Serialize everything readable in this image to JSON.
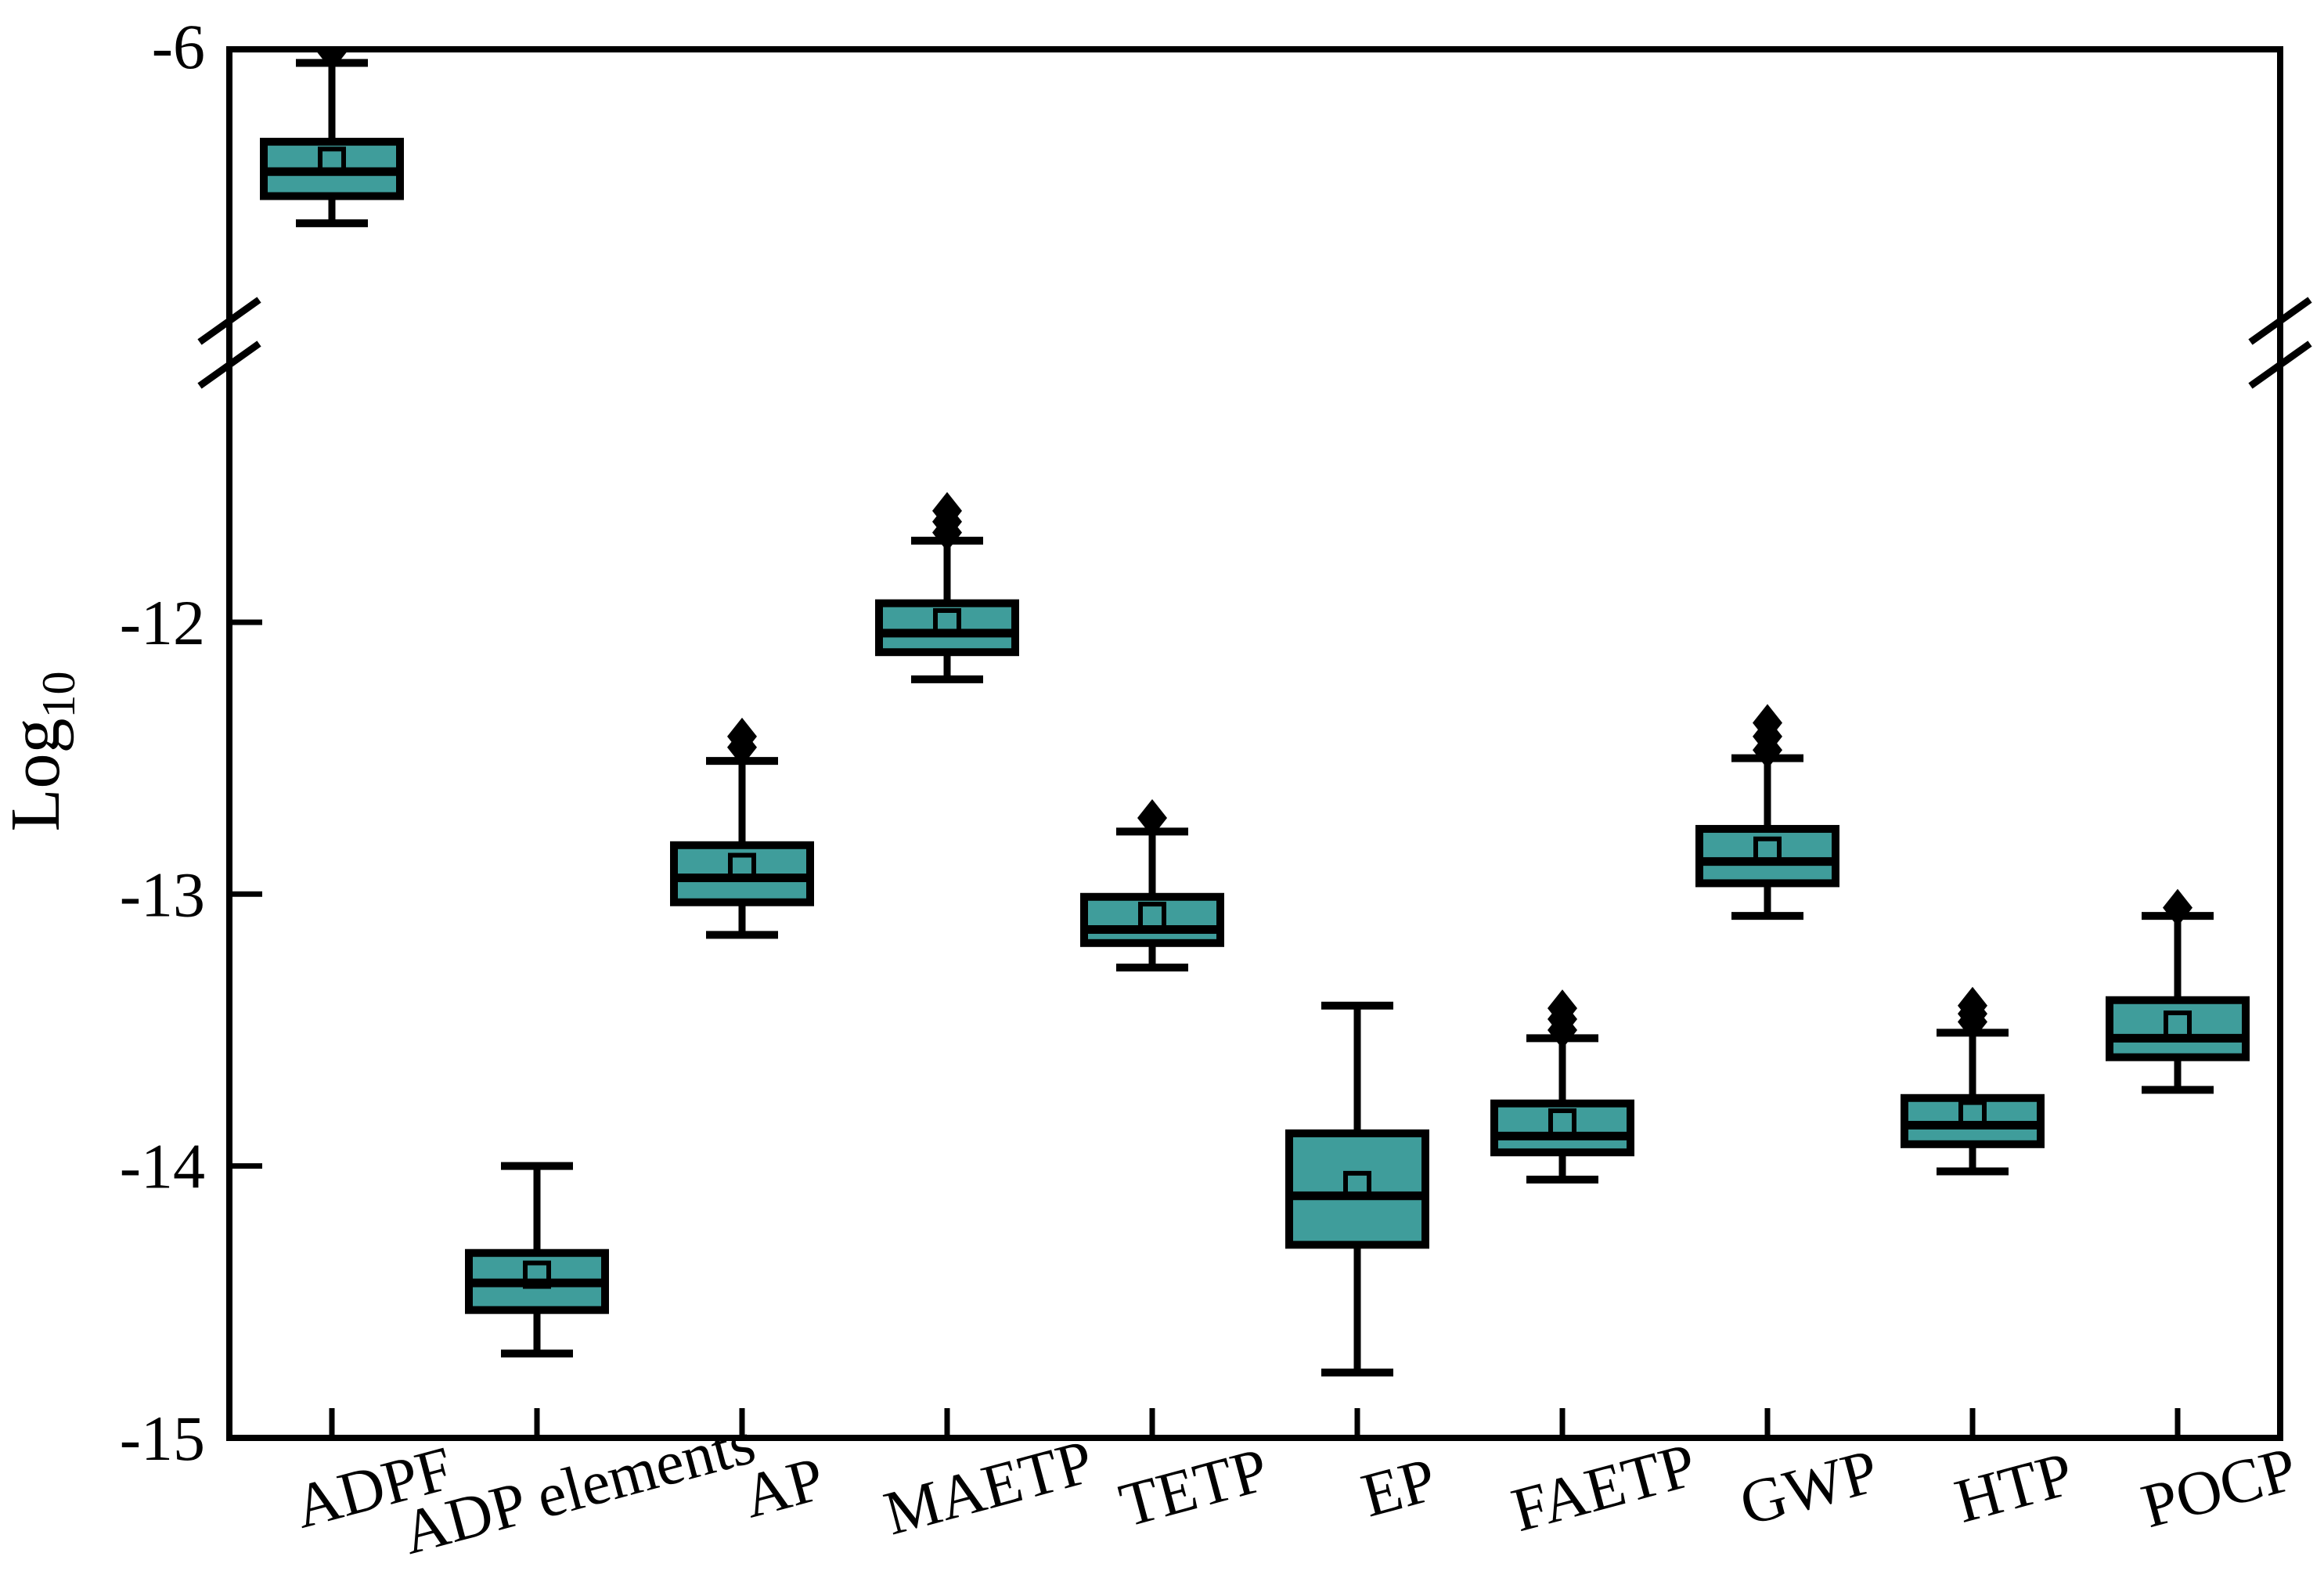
{
  "figure": {
    "background": "#ffffff",
    "line_color": "#000000",
    "box_fill": "#3F9D9B",
    "ylabel_base": "Log",
    "ylabel_sub": "10"
  },
  "chart_data": {
    "type": "box",
    "title": "",
    "xlabel": "",
    "ylabel": "Log10",
    "legend": "none",
    "grid": false,
    "axis_break": true,
    "upper_segment_range": [
      -6.95,
      -6.0
    ],
    "lower_segment_range": [
      -15.0,
      -11.4
    ],
    "y_ticks_upper": [
      {
        "label": "-6",
        "value": -6
      }
    ],
    "y_ticks_lower": [
      {
        "label": "-12",
        "value": -12
      },
      {
        "label": "-13",
        "value": -13
      },
      {
        "label": "-14",
        "value": -14
      },
      {
        "label": "-15",
        "value": -15
      }
    ],
    "categories": [
      "ADPF",
      "ADP elements",
      "AP",
      "MAETP",
      "TETP",
      "EP",
      "FAETP",
      "GWP",
      "HTP",
      "POCP"
    ],
    "boxes": [
      {
        "name": "ADPF",
        "whisker_low": -6.64,
        "q1": -6.54,
        "median": -6.45,
        "mean": -6.41,
        "q3": -6.34,
        "whisker_high": -6.05,
        "outliers": [
          -6.01
        ]
      },
      {
        "name": "ADP elements",
        "whisker_low": -14.69,
        "q1": -14.53,
        "median": -14.43,
        "mean": -14.4,
        "q3": -14.32,
        "whisker_high": -14.0,
        "outliers": []
      },
      {
        "name": "AP",
        "whisker_low": -13.15,
        "q1": -13.03,
        "median": -12.94,
        "mean": -12.9,
        "q3": -12.82,
        "whisker_high": -12.51,
        "outliers": [
          -12.46,
          -12.42
        ]
      },
      {
        "name": "MAETP",
        "whisker_low": -12.21,
        "q1": -12.11,
        "median": -12.04,
        "mean": -12.0,
        "q3": -11.93,
        "whisker_high": -11.7,
        "outliers": [
          -11.67,
          -11.63,
          -11.59
        ]
      },
      {
        "name": "TETP",
        "whisker_low": -13.27,
        "q1": -13.18,
        "median": -13.13,
        "mean": -13.08,
        "q3": -13.01,
        "whisker_high": -12.77,
        "outliers": [
          -12.72
        ]
      },
      {
        "name": "EP",
        "whisker_low": -14.76,
        "q1": -14.29,
        "median": -14.11,
        "mean": -14.07,
        "q3": -13.88,
        "whisker_high": -13.41,
        "outliers": []
      },
      {
        "name": "FAETP",
        "whisker_low": -14.05,
        "q1": -13.95,
        "median": -13.89,
        "mean": -13.84,
        "q3": -13.77,
        "whisker_high": -13.53,
        "outliers": [
          -13.5,
          -13.46,
          -13.42
        ]
      },
      {
        "name": "GWP",
        "whisker_low": -13.08,
        "q1": -12.96,
        "median": -12.88,
        "mean": -12.84,
        "q3": -12.76,
        "whisker_high": -12.5,
        "outliers": [
          -12.47,
          -12.42,
          -12.37
        ]
      },
      {
        "name": "HTP",
        "whisker_low": -14.02,
        "q1": -13.92,
        "median": -13.85,
        "mean": -13.81,
        "q3": -13.75,
        "whisker_high": -13.51,
        "outliers": [
          -13.47,
          -13.44,
          -13.41
        ]
      },
      {
        "name": "POCP",
        "whisker_low": -13.72,
        "q1": -13.6,
        "median": -13.53,
        "mean": -13.48,
        "q3": -13.39,
        "whisker_high": -13.08,
        "outliers": [
          -13.05
        ]
      }
    ]
  }
}
